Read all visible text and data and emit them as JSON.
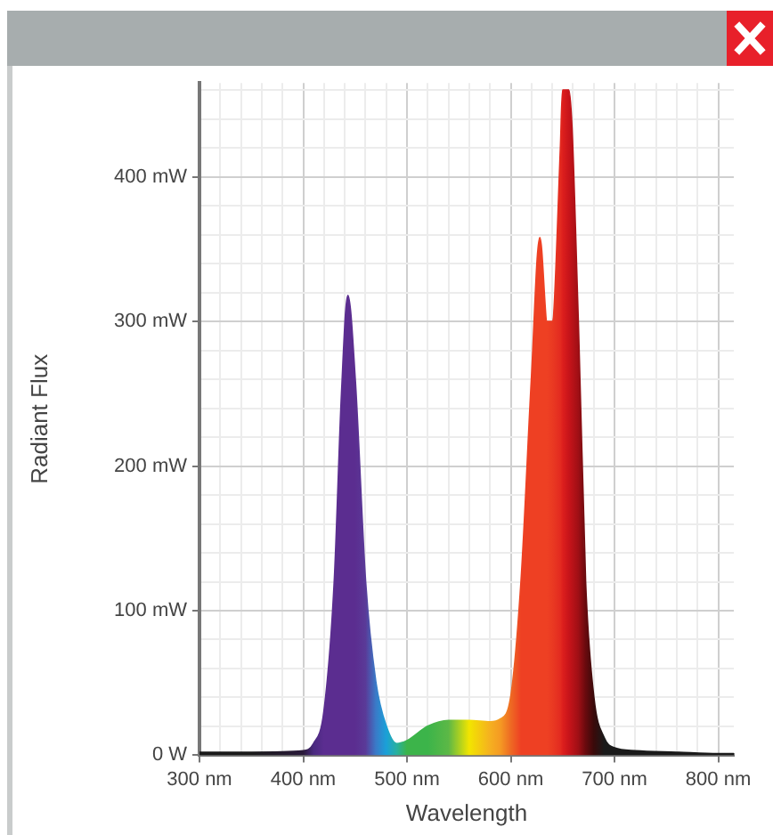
{
  "chart_data": {
    "type": "area",
    "xlabel": "Wavelength",
    "ylabel": "Radiant Flux",
    "x": [
      300,
      350,
      400,
      410,
      420,
      430,
      437,
      443,
      450,
      460,
      470,
      480,
      490,
      500,
      510,
      520,
      540,
      560,
      580,
      590,
      600,
      610,
      620,
      628,
      635,
      640,
      648,
      650,
      656,
      665,
      672,
      680,
      690,
      700,
      720,
      760,
      800,
      815
    ],
    "series": [
      {
        "values": [
          2,
          2,
          3,
          8,
          30,
          120,
          250,
          318,
          260,
          120,
          50,
          20,
          8,
          10,
          15,
          20,
          24,
          24,
          23,
          25,
          40,
          120,
          260,
          358,
          300,
          300,
          420,
          460,
          460,
          300,
          120,
          40,
          12,
          5,
          3,
          2,
          1,
          1
        ],
        "colors": [
          "#1a1a1a",
          "#1a1a1a",
          "#2a1a3a",
          "#4a2a80",
          "#5b2d90",
          "#5b2d90",
          "#5b2d90",
          "#5b2d90",
          "#5b2d90",
          "#5a3a98",
          "#3a7ac8",
          "#1aa0d8",
          "#28b0a0",
          "#3cb44a",
          "#3cb44a",
          "#3cb44a",
          "#5cb846",
          "#f2e500",
          "#f5b020",
          "#f59a23",
          "#ee6a23",
          "#ee4023",
          "#ee4023",
          "#ee4023",
          "#ee4023",
          "#ea3a22",
          "#e32a20",
          "#dd1f1d",
          "#c8141a",
          "#a00f15",
          "#6a0a0e",
          "#3a0a0a",
          "#1a1a1a",
          "#1a1a1a",
          "#1a1a1a",
          "#1a1a1a",
          "#1a1a1a",
          "#1a1a1a"
        ]
      }
    ],
    "xlim": [
      300,
      815
    ],
    "xticks": [
      {
        "value": 300,
        "label": "300 nm"
      },
      {
        "value": 320,
        "label": null
      },
      {
        "value": 340,
        "label": null
      },
      {
        "value": 360,
        "label": null
      },
      {
        "value": 380,
        "label": null
      },
      {
        "value": 400,
        "label": "400 nm"
      },
      {
        "value": 420,
        "label": null
      },
      {
        "value": 440,
        "label": null
      },
      {
        "value": 460,
        "label": null
      },
      {
        "value": 480,
        "label": null
      },
      {
        "value": 500,
        "label": "500 nm"
      },
      {
        "value": 520,
        "label": null
      },
      {
        "value": 540,
        "label": null
      },
      {
        "value": 560,
        "label": null
      },
      {
        "value": 580,
        "label": null
      },
      {
        "value": 600,
        "label": "600 nm"
      },
      {
        "value": 620,
        "label": null
      },
      {
        "value": 640,
        "label": null
      },
      {
        "value": 660,
        "label": null
      },
      {
        "value": 680,
        "label": null
      },
      {
        "value": 700,
        "label": "700 nm"
      },
      {
        "value": 720,
        "label": null
      },
      {
        "value": 740,
        "label": null
      },
      {
        "value": 760,
        "label": null
      },
      {
        "value": 780,
        "label": null
      },
      {
        "value": 800,
        "label": "800 nm"
      }
    ],
    "ylim": [
      0,
      465
    ],
    "yticks": [
      {
        "value": 0,
        "label": "0 W"
      },
      {
        "value": 20,
        "label": null
      },
      {
        "value": 40,
        "label": null
      },
      {
        "value": 60,
        "label": null
      },
      {
        "value": 80,
        "label": null
      },
      {
        "value": 100,
        "label": "100 mW"
      },
      {
        "value": 120,
        "label": null
      },
      {
        "value": 140,
        "label": null
      },
      {
        "value": 160,
        "label": null
      },
      {
        "value": 180,
        "label": null
      },
      {
        "value": 200,
        "label": "200 mW"
      },
      {
        "value": 220,
        "label": null
      },
      {
        "value": 240,
        "label": null
      },
      {
        "value": 260,
        "label": null
      },
      {
        "value": 280,
        "label": null
      },
      {
        "value": 300,
        "label": "300 mW"
      },
      {
        "value": 320,
        "label": null
      },
      {
        "value": 340,
        "label": null
      },
      {
        "value": 360,
        "label": null
      },
      {
        "value": 380,
        "label": null
      },
      {
        "value": 400,
        "label": "400 mW"
      },
      {
        "value": 420,
        "label": null
      },
      {
        "value": 440,
        "label": null
      },
      {
        "value": 460,
        "label": null
      }
    ],
    "grid": true
  }
}
